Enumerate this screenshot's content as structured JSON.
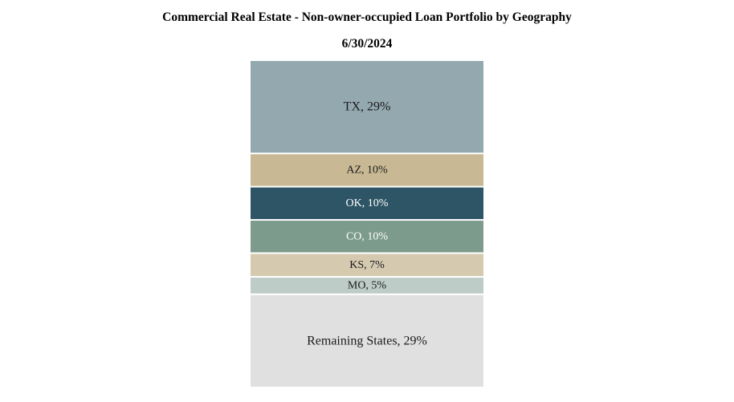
{
  "chart_data": {
    "type": "stacked-bar",
    "title": "Commercial Real Estate - Non-owner-occupied Loan Portfolio by Geography",
    "subtitle": "6/30/2024",
    "unit": "%",
    "segments": [
      {
        "label": "TX, 29%",
        "category": "TX",
        "value": 29,
        "color": "#94A8B0",
        "text_color": "#1a1a1a"
      },
      {
        "label": "AZ, 10%",
        "category": "AZ",
        "value": 10,
        "color": "#C8B994",
        "text_color": "#1a1a1a"
      },
      {
        "label": "OK, 10%",
        "category": "OK",
        "value": 10,
        "color": "#2D5565",
        "text_color": "#ffffff"
      },
      {
        "label": "CO, 10%",
        "category": "CO",
        "value": 10,
        "color": "#7C9B8C",
        "text_color": "#ffffff"
      },
      {
        "label": "KS, 7%",
        "category": "KS",
        "value": 7,
        "color": "#D5C9B0",
        "text_color": "#1a1a1a"
      },
      {
        "label": "MO, 5%",
        "category": "MO",
        "value": 5,
        "color": "#BDCCC6",
        "text_color": "#1a1a1a"
      },
      {
        "label": "Remaining States, 29%",
        "category": "Remaining States",
        "value": 29,
        "color": "#E0E0E0",
        "text_color": "#1a1a1a"
      }
    ]
  }
}
